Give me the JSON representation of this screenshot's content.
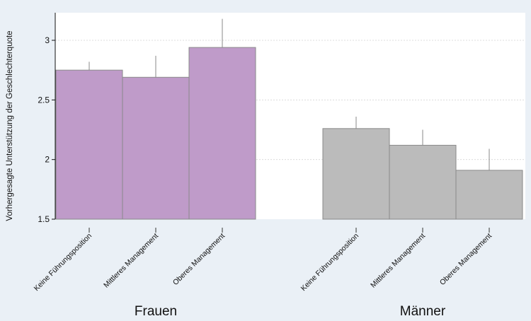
{
  "chart_data": {
    "type": "bar",
    "ylabel": "Vorhergesagte Unterstützung der Geschlechterquote",
    "ylim": [
      1.5,
      3.25
    ],
    "yticks": [
      1.5,
      2,
      2.5,
      3
    ],
    "ytick_labels": [
      "1.5",
      "2",
      "2.5",
      "3"
    ],
    "grid": true,
    "groups": [
      {
        "name": "Frauen",
        "color": "#bf9bc9",
        "categories": [
          "Keine Führungsposition",
          "Mittleres Management",
          "Oberes Management"
        ],
        "values": [
          2.75,
          2.69,
          2.94
        ],
        "error_upper": [
          2.82,
          2.87,
          3.18
        ]
      },
      {
        "name": "Männer",
        "color": "#bbbbbb",
        "categories": [
          "Keine Führungsposition",
          "Mittleres Management",
          "Oberes Management"
        ],
        "values": [
          2.26,
          2.12,
          1.91
        ],
        "error_upper": [
          2.36,
          2.25,
          2.09
        ]
      }
    ]
  },
  "colors": {
    "background": "#eaf0f6",
    "plot_background": "#ffffff",
    "bar_edge": "#8a8a8a",
    "grid": "#dcdcdc"
  }
}
